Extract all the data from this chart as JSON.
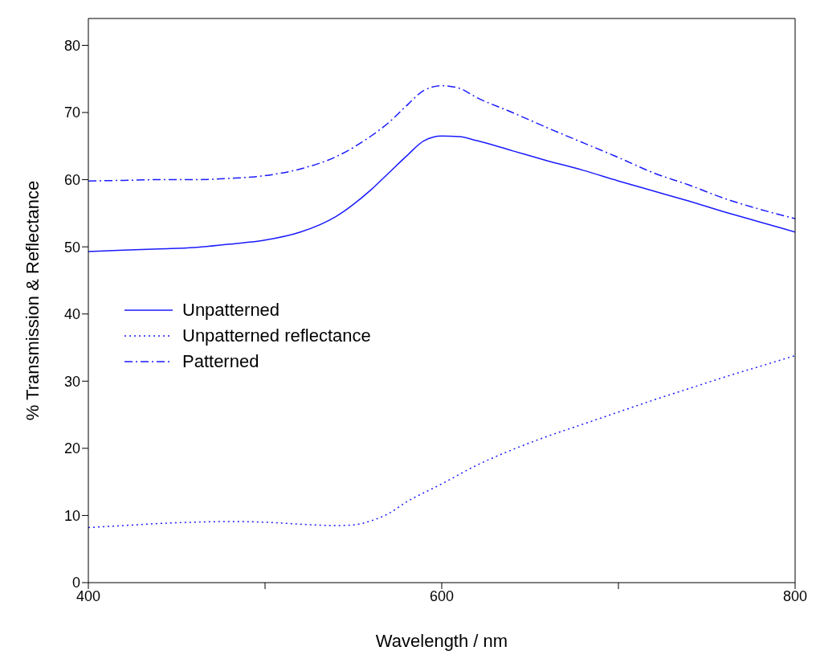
{
  "chart_data": {
    "type": "line",
    "xlabel": "Wavelength / nm",
    "ylabel": "% Transmission & Reflectance",
    "xlim": [
      400,
      800
    ],
    "xticks": [
      400,
      {
        "value": 500,
        "label": null
      },
      600,
      {
        "value": 700,
        "label": null
      },
      800
    ],
    "ylim": [
      0,
      84
    ],
    "yticks": [
      0,
      10,
      20,
      30,
      40,
      50,
      60,
      70,
      80
    ],
    "grid": false,
    "legend": "left",
    "marker": "none",
    "series": [
      {
        "name": "Unpatterned",
        "color": "#1a1aff",
        "line_style": "solid",
        "x": [
          400,
          440,
          460,
          480,
          500,
          520,
          540,
          560,
          570,
          580,
          590,
          600,
          610,
          620,
          640,
          660,
          680,
          700,
          720,
          740,
          760,
          780,
          800
        ],
        "values": [
          49.3,
          49.7,
          49.9,
          50.4,
          51,
          52.2,
          54.5,
          58.5,
          61,
          63.5,
          65.8,
          66.5,
          66.4,
          65.8,
          64.3,
          62.8,
          61.4,
          59.8,
          58.3,
          56.8,
          55.2,
          53.7,
          52.2
        ]
      },
      {
        "name": "Unpatterned reflectance",
        "color": "#1a1aff",
        "line_style": "dotted",
        "x": [
          400,
          420,
          440,
          460,
          480,
          500,
          520,
          540,
          550,
          560,
          570,
          580,
          600,
          620,
          640,
          660,
          680,
          700,
          720,
          740,
          760,
          780,
          800
        ],
        "values": [
          8.2,
          8.5,
          8.8,
          9,
          9.1,
          9,
          8.7,
          8.5,
          8.6,
          9.2,
          10.3,
          12,
          14.7,
          17.5,
          19.8,
          21.8,
          23.6,
          25.4,
          27.2,
          28.9,
          30.6,
          32.2,
          33.8
        ]
      },
      {
        "name": "Patterned",
        "color": "#1a1aff",
        "line_style": "dashed",
        "x": [
          400,
          420,
          440,
          460,
          480,
          500,
          520,
          540,
          560,
          570,
          580,
          590,
          600,
          610,
          620,
          640,
          660,
          680,
          700,
          720,
          740,
          760,
          780,
          800
        ],
        "values": [
          59.8,
          59.9,
          60,
          60,
          60.2,
          60.6,
          61.6,
          63.4,
          66.5,
          68.5,
          71,
          73.3,
          74,
          73.6,
          72.2,
          70,
          67.7,
          65.5,
          63.3,
          61,
          59.2,
          57.2,
          55.6,
          54.2
        ]
      }
    ]
  }
}
